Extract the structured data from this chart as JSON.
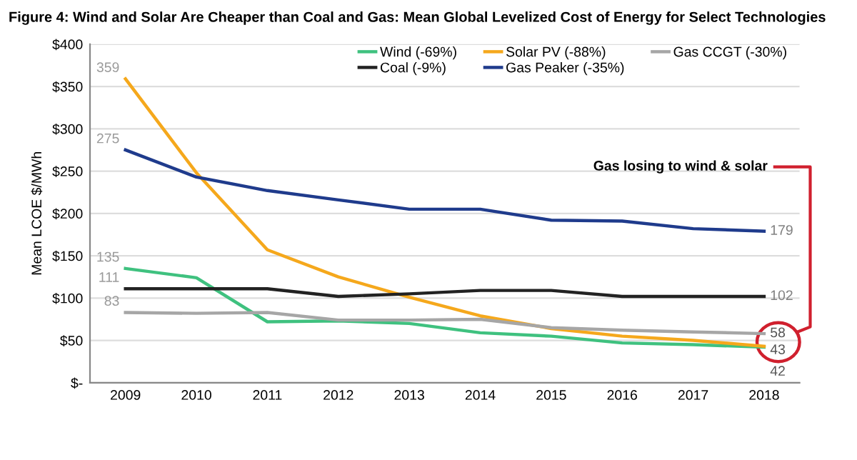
{
  "chart_data": {
    "type": "line",
    "title": "Figure 4: Wind and Solar Are Cheaper than Coal and Gas: Mean Global Levelized Cost of Energy for Select Technologies",
    "ylabel": "Mean LCOE $/MWh",
    "categories": [
      "2009",
      "2010",
      "2011",
      "2012",
      "2013",
      "2014",
      "2015",
      "2016",
      "2017",
      "2018"
    ],
    "series": [
      {
        "name": "Wind (-69%)",
        "color": "#3fc17f",
        "values": [
          135,
          124,
          72,
          73,
          70,
          59,
          55,
          47,
          45,
          42
        ],
        "value_labels": [
          "135",
          null,
          null,
          null,
          null,
          null,
          null,
          null,
          null,
          "42"
        ]
      },
      {
        "name": "Solar PV (-88%)",
        "color": "#f5a81c",
        "values": [
          359,
          248,
          157,
          125,
          101,
          79,
          64,
          55,
          50,
          43
        ],
        "value_labels": [
          "359",
          null,
          null,
          null,
          null,
          null,
          null,
          null,
          null,
          "43"
        ]
      },
      {
        "name": "Gas CCGT (-30%)",
        "color": "#a6a6a6",
        "values": [
          83,
          82,
          83,
          74,
          74,
          75,
          65,
          62,
          60,
          58
        ],
        "value_labels": [
          "83",
          null,
          null,
          null,
          null,
          null,
          null,
          null,
          null,
          "58"
        ]
      },
      {
        "name": "Coal (-9%)",
        "color": "#222222",
        "values": [
          111,
          111,
          111,
          102,
          105,
          109,
          109,
          102,
          102,
          102
        ],
        "value_labels": [
          "111",
          null,
          null,
          null,
          null,
          null,
          null,
          null,
          null,
          "102"
        ]
      },
      {
        "name": "Gas Peaker (-35%)",
        "color": "#1f3b8c",
        "values": [
          275,
          243,
          227,
          216,
          205,
          205,
          192,
          191,
          182,
          179
        ],
        "value_labels": [
          "275",
          null,
          null,
          null,
          null,
          null,
          null,
          null,
          null,
          "179"
        ]
      }
    ],
    "ylim": [
      0,
      400
    ],
    "yticks": [
      {
        "value": 0,
        "label": "$-"
      },
      {
        "value": 50,
        "label": "$50"
      },
      {
        "value": 100,
        "label": "$100"
      },
      {
        "value": 150,
        "label": "$150"
      },
      {
        "value": 200,
        "label": "$200"
      },
      {
        "value": 250,
        "label": "$250"
      },
      {
        "value": 300,
        "label": "$300"
      },
      {
        "value": 350,
        "label": "$350"
      },
      {
        "value": 400,
        "label": "$400"
      }
    ],
    "grid": "y",
    "legend": "top right",
    "marker": "none",
    "line_style": "solid",
    "annotations": [
      "Gas losing to wind & solar"
    ]
  }
}
